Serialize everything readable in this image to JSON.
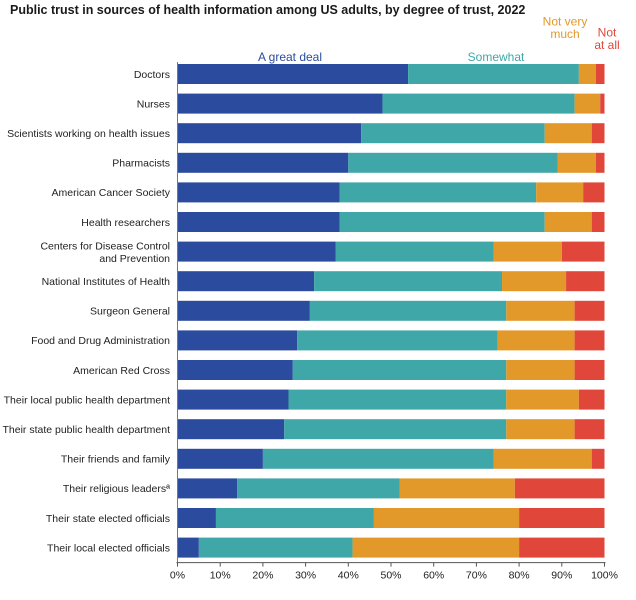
{
  "chart_data": {
    "type": "bar",
    "orientation": "horizontal",
    "stacked": true,
    "title": "Public trust in sources of health information among US adults, by degree of trust, 2022",
    "categories": [
      "Doctors",
      "Nurses",
      "Scientists working on health issues",
      "Pharmacists",
      "American Cancer Society",
      "Health researchers",
      "Centers for Disease Control|and Prevention",
      "National Institutes of Health",
      "Surgeon General",
      "Food and Drug Administration",
      "American Red Cross",
      "Their local public health department",
      "Their state public health department",
      "Their friends and family",
      "Their religious leadersª",
      "Their state elected officials",
      "Their local elected officials"
    ],
    "series": [
      {
        "name": "A great deal",
        "legend_lines": [
          "A great deal"
        ],
        "color": "#2b4b9e",
        "values": [
          54,
          48,
          43,
          40,
          38,
          38,
          37,
          32,
          31,
          28,
          27,
          26,
          25,
          20,
          14,
          9,
          5
        ]
      },
      {
        "name": "Somewhat",
        "legend_lines": [
          "Somewhat"
        ],
        "color": "#3fa7a8",
        "values": [
          40,
          45,
          43,
          49,
          46,
          48,
          37,
          44,
          46,
          47,
          50,
          51,
          52,
          54,
          38,
          37,
          36
        ]
      },
      {
        "name": "Not very much",
        "legend_lines": [
          "Not very",
          "much"
        ],
        "color": "#e3992a",
        "values": [
          4,
          6,
          11,
          9,
          11,
          11,
          16,
          15,
          16,
          18,
          16,
          17,
          16,
          23,
          27,
          34,
          39
        ]
      },
      {
        "name": "Not at all",
        "legend_lines": [
          "Not",
          "at all"
        ],
        "color": "#e0473a",
        "values": [
          2,
          1,
          3,
          2,
          5,
          3,
          10,
          9,
          7,
          7,
          7,
          6,
          7,
          3,
          21,
          20,
          20
        ]
      }
    ],
    "x_ticks": [
      "0%",
      "10%",
      "20%",
      "30%",
      "40%",
      "50%",
      "60%",
      "70%",
      "80%",
      "90%",
      "100%"
    ],
    "xlim": [
      0,
      100
    ],
    "grid": false,
    "legend": "top"
  }
}
